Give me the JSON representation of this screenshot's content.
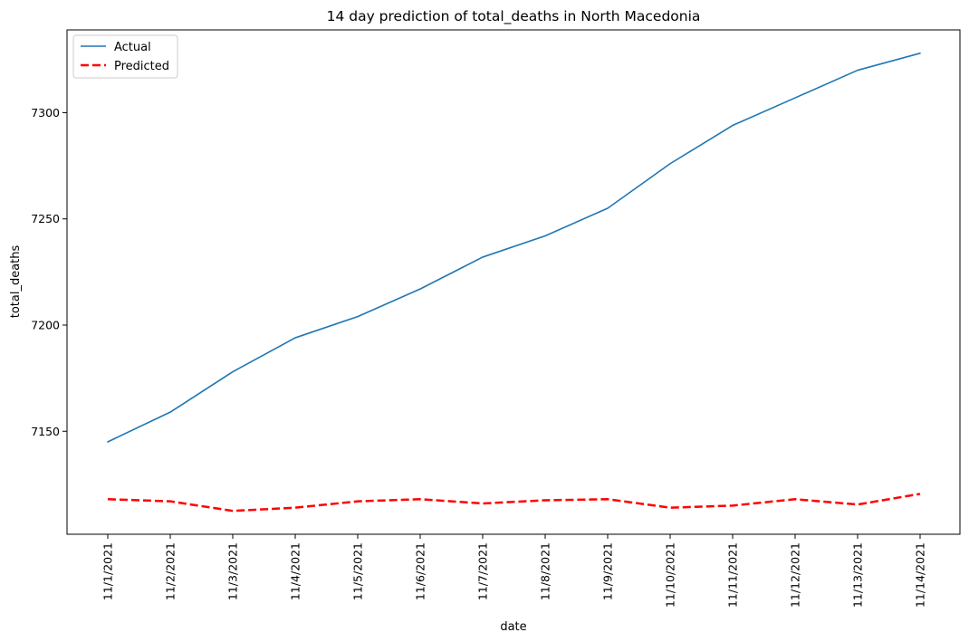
{
  "chart_data": {
    "type": "line",
    "title": "14 day prediction of total_deaths in North Macedonia",
    "xlabel": "date",
    "ylabel": "total_deaths",
    "categories": [
      "11/1/2021",
      "11/2/2021",
      "11/3/2021",
      "11/4/2021",
      "11/5/2021",
      "11/6/2021",
      "11/7/2021",
      "11/8/2021",
      "11/9/2021",
      "11/10/2021",
      "11/11/2021",
      "11/12/2021",
      "11/13/2021",
      "11/14/2021"
    ],
    "ylim": [
      7101.5,
      7339
    ],
    "yticks": [
      7150,
      7200,
      7250,
      7300
    ],
    "grid": false,
    "legend_position": "top-left",
    "series": [
      {
        "name": "Actual",
        "color": "#1f77b4",
        "style": "solid",
        "values": [
          7145,
          7159,
          7178,
          7194,
          7204,
          7217,
          7232,
          7242,
          7255,
          7276,
          7294,
          7307,
          7320,
          7328
        ]
      },
      {
        "name": "Predicted",
        "color": "#ff0000",
        "style": "dashed",
        "values": [
          7118,
          7117,
          7112.5,
          7114,
          7117,
          7118,
          7116,
          7117.5,
          7118,
          7114,
          7115,
          7118,
          7115.5,
          7120.5
        ]
      }
    ]
  }
}
